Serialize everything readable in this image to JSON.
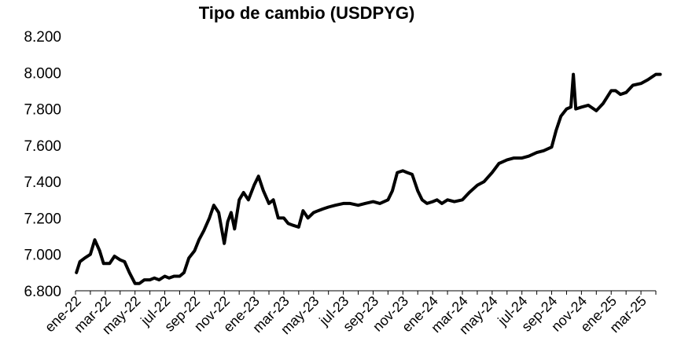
{
  "chart_data": {
    "type": "line",
    "title": "Tipo de cambio (USDPYG)",
    "xlabel": "",
    "ylabel": "",
    "ylim": [
      6800,
      8200
    ],
    "y_ticks": [
      6800,
      7000,
      7200,
      7400,
      7600,
      7800,
      8000,
      8200
    ],
    "y_tick_labels": [
      "6.800",
      "7.000",
      "7.200",
      "7.400",
      "7.600",
      "7.800",
      "8.000",
      "8.200"
    ],
    "x_range_months": [
      "2022-01",
      "2025-04"
    ],
    "x_ticks": [
      "ene-22",
      "mar-22",
      "may-22",
      "jul-22",
      "sep-22",
      "nov-22",
      "ene-23",
      "mar-23",
      "may-23",
      "jul-23",
      "sep-23",
      "nov-23",
      "ene-24",
      "mar-24",
      "may-24",
      "jul-24",
      "sep-24",
      "nov-24",
      "ene-25",
      "mar-25"
    ],
    "grid": false,
    "legend": "none",
    "line_color": "#000000",
    "series": [
      {
        "x": [
          "2022-01-03",
          "2022-01-10",
          "2022-01-20",
          "2022-02-01",
          "2022-02-10",
          "2022-02-20",
          "2022-02-28",
          "2022-03-10",
          "2022-03-20",
          "2022-04-01",
          "2022-04-10",
          "2022-04-20",
          "2022-05-01",
          "2022-05-10",
          "2022-05-20",
          "2022-06-01",
          "2022-06-10",
          "2022-06-20",
          "2022-07-01",
          "2022-07-10",
          "2022-07-20",
          "2022-08-01",
          "2022-08-10",
          "2022-08-20",
          "2022-09-01",
          "2022-09-10",
          "2022-09-20",
          "2022-10-01",
          "2022-10-10",
          "2022-10-20",
          "2022-11-01",
          "2022-11-08",
          "2022-11-15",
          "2022-11-22",
          "2022-12-01",
          "2022-12-10",
          "2022-12-20",
          "2023-01-01",
          "2023-01-10",
          "2023-01-20",
          "2023-02-01",
          "2023-02-10",
          "2023-02-20",
          "2023-03-01",
          "2023-03-10",
          "2023-03-20",
          "2023-04-01",
          "2023-04-10",
          "2023-04-20",
          "2023-05-01",
          "2023-05-10",
          "2023-05-20",
          "2023-06-01",
          "2023-06-15",
          "2023-07-01",
          "2023-07-15",
          "2023-08-01",
          "2023-08-15",
          "2023-09-01",
          "2023-09-15",
          "2023-10-01",
          "2023-10-10",
          "2023-10-20",
          "2023-11-01",
          "2023-11-10",
          "2023-11-20",
          "2023-12-01",
          "2023-12-10",
          "2023-12-20",
          "2024-01-01",
          "2024-01-10",
          "2024-01-20",
          "2024-02-01",
          "2024-02-15",
          "2024-03-01",
          "2024-03-15",
          "2024-04-01",
          "2024-04-15",
          "2024-05-01",
          "2024-05-15",
          "2024-06-01",
          "2024-06-15",
          "2024-07-01",
          "2024-07-15",
          "2024-08-01",
          "2024-08-15",
          "2024-09-01",
          "2024-09-10",
          "2024-09-20",
          "2024-10-01",
          "2024-10-10",
          "2024-10-15",
          "2024-10-20",
          "2024-11-01",
          "2024-11-15",
          "2024-12-01",
          "2024-12-15",
          "2025-01-01",
          "2025-01-10",
          "2025-01-20",
          "2025-02-01",
          "2025-02-15",
          "2025-03-01",
          "2025-03-15",
          "2025-04-01",
          "2025-04-10"
        ],
        "values": [
          6900,
          6960,
          6980,
          7000,
          7080,
          7020,
          6950,
          6950,
          6990,
          6970,
          6960,
          6900,
          6840,
          6840,
          6860,
          6860,
          6870,
          6860,
          6880,
          6870,
          6880,
          6880,
          6900,
          6980,
          7020,
          7080,
          7130,
          7200,
          7270,
          7230,
          7060,
          7180,
          7230,
          7140,
          7300,
          7340,
          7300,
          7380,
          7430,
          7350,
          7280,
          7300,
          7200,
          7200,
          7170,
          7160,
          7150,
          7240,
          7200,
          7230,
          7240,
          7250,
          7260,
          7270,
          7280,
          7280,
          7270,
          7280,
          7290,
          7280,
          7300,
          7350,
          7450,
          7460,
          7450,
          7440,
          7350,
          7300,
          7280,
          7290,
          7300,
          7280,
          7300,
          7290,
          7300,
          7340,
          7380,
          7400,
          7450,
          7500,
          7520,
          7530,
          7530,
          7540,
          7560,
          7570,
          7590,
          7680,
          7760,
          7800,
          7810,
          7990,
          7800,
          7810,
          7820,
          7790,
          7830,
          7900,
          7900,
          7880,
          7890,
          7930,
          7940,
          7960,
          7990,
          7990
        ]
      }
    ]
  }
}
